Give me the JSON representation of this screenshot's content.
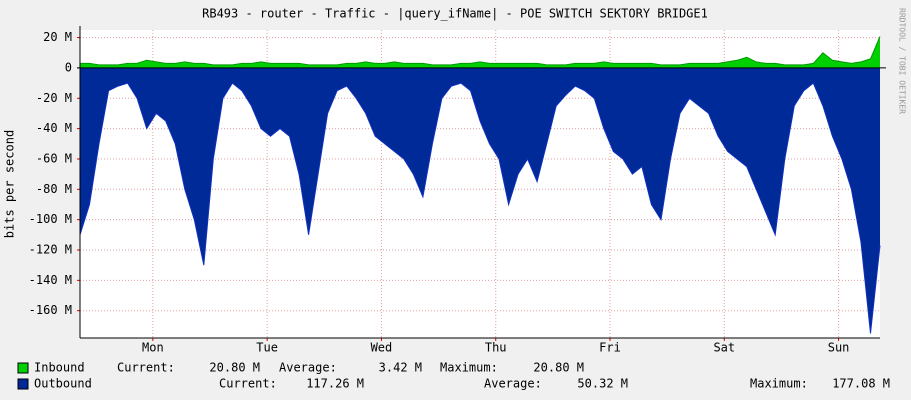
{
  "chart_data": {
    "type": "area",
    "title": "RB493 - router - Traffic - |query_ifName| - POE SWITCH SEKTORY BRIDGE1",
    "y_label": "bits per second",
    "side_text": "RRDTOOL / TOBI OETIKER",
    "xlim": [
      0,
      168
    ],
    "xticks": [
      {
        "value": 15.3,
        "label": "Mon"
      },
      {
        "value": 39.3,
        "label": "Tue"
      },
      {
        "value": 63.3,
        "label": "Wed"
      },
      {
        "value": 87.3,
        "label": "Thu"
      },
      {
        "value": 111.3,
        "label": "Fri"
      },
      {
        "value": 135.3,
        "label": "Sat"
      },
      {
        "value": 159.3,
        "label": "Sun"
      }
    ],
    "ylim": [
      -178,
      25
    ],
    "yticks": [
      {
        "value": 20,
        "label": "20 M"
      },
      0,
      {
        "value": -20,
        "label": "-20 M"
      },
      {
        "value": -40,
        "label": "-40 M"
      },
      {
        "value": -60,
        "label": "-60 M"
      },
      {
        "value": -80,
        "label": "-80 M"
      },
      {
        "value": -100,
        "label": "-100 M"
      },
      {
        "value": -120,
        "label": "-120 M"
      },
      {
        "value": -140,
        "label": "-140 M"
      },
      {
        "value": -160,
        "label": "-160 M"
      }
    ],
    "grid": true,
    "x": [
      0,
      2,
      4,
      6,
      8,
      10,
      12,
      14,
      16,
      18,
      20,
      22,
      24,
      26,
      28,
      30,
      32,
      34,
      36,
      38,
      40,
      42,
      44,
      46,
      48,
      50,
      52,
      54,
      56,
      58,
      60,
      62,
      64,
      66,
      68,
      70,
      72,
      74,
      76,
      78,
      80,
      82,
      84,
      86,
      88,
      90,
      92,
      94,
      96,
      98,
      100,
      102,
      104,
      106,
      108,
      110,
      112,
      114,
      116,
      118,
      120,
      122,
      124,
      126,
      128,
      130,
      132,
      134,
      136,
      138,
      140,
      142,
      144,
      146,
      148,
      150,
      152,
      154,
      156,
      158,
      160,
      162,
      164,
      166,
      168
    ],
    "series": [
      {
        "name": "Inbound",
        "color": "#00CF00",
        "line_color": "#009900",
        "values": [
          3,
          3,
          2,
          2,
          2,
          3,
          3,
          5,
          4,
          3,
          3,
          4,
          3,
          3,
          2,
          2,
          2,
          3,
          3,
          4,
          3,
          3,
          3,
          3,
          2,
          2,
          2,
          2,
          3,
          3,
          4,
          3,
          3,
          4,
          3,
          3,
          3,
          2,
          2,
          2,
          3,
          3,
          4,
          3,
          3,
          3,
          3,
          3,
          3,
          2,
          2,
          2,
          3,
          3,
          3,
          4,
          3,
          3,
          3,
          3,
          3,
          2,
          2,
          2,
          3,
          3,
          3,
          3,
          4,
          5,
          7,
          4,
          3,
          3,
          2,
          2,
          2,
          3,
          10,
          5,
          4,
          3,
          4,
          6,
          20.8
        ]
      },
      {
        "name": "Outbound",
        "color": "#002A97",
        "line_color": "#1030C0",
        "values": [
          -110,
          -90,
          -50,
          -15,
          -12,
          -10,
          -20,
          -40,
          -30,
          -35,
          -50,
          -80,
          -100,
          -130,
          -60,
          -20,
          -10,
          -15,
          -25,
          -40,
          -45,
          -40,
          -45,
          -70,
          -110,
          -70,
          -30,
          -15,
          -12,
          -20,
          -30,
          -45,
          -50,
          -55,
          -60,
          -70,
          -85,
          -50,
          -20,
          -12,
          -10,
          -15,
          -35,
          -50,
          -60,
          -90,
          -70,
          -60,
          -75,
          -50,
          -25,
          -18,
          -12,
          -15,
          -20,
          -40,
          -55,
          -60,
          -70,
          -65,
          -90,
          -100,
          -60,
          -30,
          -20,
          -25,
          -30,
          -45,
          -55,
          -60,
          -65,
          -80,
          -95,
          -110,
          -60,
          -25,
          -15,
          -10,
          -25,
          -45,
          -60,
          -80,
          -115,
          -175,
          -117
        ]
      }
    ],
    "legend": [
      {
        "name": "Inbound",
        "current_label": "Current:",
        "current": "20.80 M",
        "average_label": "Average:",
        "average": "3.42 M",
        "maximum_label": "Maximum:",
        "maximum": "20.80 M"
      },
      {
        "name": "Outbound",
        "current_label": "Current:",
        "current": "117.26 M",
        "average_label": "Average:",
        "average": "50.32 M",
        "maximum_label": "Maximum:",
        "maximum": "177.08 M"
      }
    ]
  }
}
